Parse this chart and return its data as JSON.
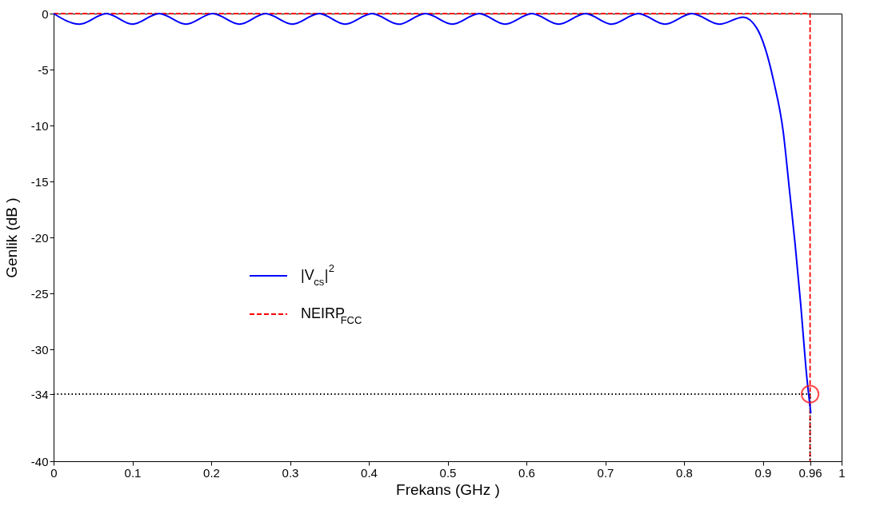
{
  "chart_data": {
    "type": "line",
    "xlabel": "Frekans   (GHz )",
    "ylabel": "Genlik  (dB )",
    "xlim": [
      0,
      1
    ],
    "ylim": [
      -40,
      0
    ],
    "xticks": [
      0,
      0.1,
      0.2,
      0.3,
      0.4,
      0.5,
      0.6,
      0.7,
      0.8,
      0.9,
      0.96,
      1
    ],
    "yticks": [
      0,
      -5,
      -10,
      -15,
      -20,
      -25,
      -30,
      -34,
      -40
    ],
    "grid": false,
    "legend": "left",
    "series": [
      {
        "name": "|V$_{cs}$|$^{2}$",
        "color": "#0000ff",
        "line_style": "solid",
        "marker": "none",
        "x": [
          0,
          0.033,
          0.067,
          0.1,
          0.134,
          0.168,
          0.202,
          0.236,
          0.269,
          0.303,
          0.337,
          0.37,
          0.404,
          0.438,
          0.472,
          0.506,
          0.54,
          0.573,
          0.607,
          0.641,
          0.675,
          0.708,
          0.742,
          0.776,
          0.81,
          0.845,
          0.875,
          0.892,
          0.903,
          0.914,
          0.926,
          0.933,
          0.941,
          0.948,
          0.956,
          0.961
        ],
        "values": [
          0,
          -0.95,
          0,
          -0.95,
          0,
          -0.95,
          0,
          -0.95,
          0,
          -0.95,
          0,
          -0.95,
          0,
          -0.95,
          0,
          -0.95,
          0,
          -0.95,
          0,
          -0.95,
          0,
          -0.95,
          0,
          -0.95,
          0,
          -0.95,
          -0.32,
          -1.26,
          -3.1,
          -6.1,
          -10.6,
          -15.2,
          -20.6,
          -25.9,
          -32.6,
          -35.7
        ]
      },
      {
        "name": "NEIRP$_{FCC}$",
        "color": "#ff0000",
        "line_style": "dashed",
        "marker": "none",
        "x": [
          0,
          0.96,
          0.96
        ],
        "values": [
          0,
          0,
          -40
        ]
      },
      {
        "color": "#000000",
        "line_style": "dotted",
        "marker": "none",
        "x": [
          0,
          0.96,
          0.96
        ],
        "values": [
          -34,
          -34,
          -40
        ]
      },
      {
        "type": "scatter",
        "color": "#ff0000",
        "marker": "circle",
        "x": [
          0.96
        ],
        "values": [
          -34
        ]
      }
    ]
  }
}
